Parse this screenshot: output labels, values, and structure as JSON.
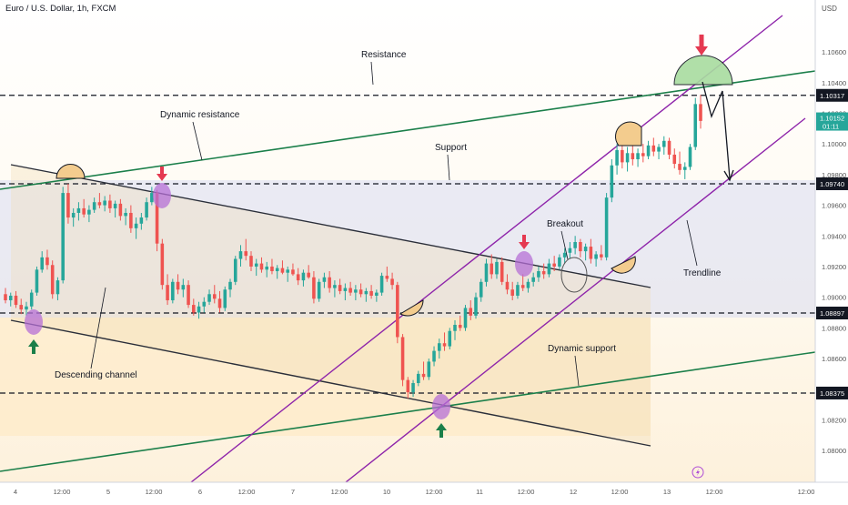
{
  "symbol_title": "Euro / U.S. Dollar, 1h, FXCM",
  "chart_data": {
    "type": "candlestick",
    "currency": "USD",
    "ylim": [
      1.079,
      1.1082
    ],
    "y_ticks": [
      "1.10600",
      "1.10400",
      "1.10200",
      "1.10000",
      "1.09800",
      "1.09600",
      "1.09400",
      "1.09200",
      "1.09000",
      "1.08800",
      "1.08600",
      "1.08400",
      "1.08200",
      "1.08000"
    ],
    "x_ticks": [
      "4",
      "12:00",
      "5",
      "12:00",
      "6",
      "12:00",
      "7",
      "12:00",
      "10",
      "12:00",
      "11",
      "12:00",
      "12",
      "12:00",
      "13",
      "12:00",
      "12:00"
    ],
    "levels": [
      {
        "price": "1.10317",
        "color": "#131722"
      },
      {
        "price": "1.09740",
        "color": "#131722"
      },
      {
        "price": "1.08897",
        "color": "#131722"
      },
      {
        "price": "1.08375",
        "color": "#131722"
      }
    ],
    "last_price": {
      "price": "1.10152",
      "countdown": "01:11",
      "color": "#26a69a"
    },
    "annotations": [
      "Resistance",
      "Dynamic resistance",
      "Support",
      "Breakout",
      "Trendline",
      "Descending channel",
      "Dynamic support"
    ],
    "colors": {
      "up": "#26a69a",
      "down": "#ef5350",
      "channel": "#8e24aa",
      "dynamic": "#1b7f4a",
      "marker_down": "#e53950",
      "marker_up": "#1b7f4a"
    },
    "candles": [
      [
        1.0902,
        1.0906,
        1.0896,
        1.0898
      ],
      [
        1.0898,
        1.0903,
        1.0894,
        1.0901
      ],
      [
        1.0901,
        1.0904,
        1.0893,
        1.0895
      ],
      [
        1.0895,
        1.0899,
        1.0889,
        1.0892
      ],
      [
        1.0892,
        1.0897,
        1.0888,
        1.0894
      ],
      [
        1.0894,
        1.0905,
        1.0892,
        1.0903
      ],
      [
        1.0903,
        1.092,
        1.0901,
        1.0918
      ],
      [
        1.0918,
        1.093,
        1.0916,
        1.0926
      ],
      [
        1.0926,
        1.0931,
        1.0918,
        1.0921
      ],
      [
        1.0921,
        1.0924,
        1.0899,
        1.0902
      ],
      [
        1.0902,
        1.0913,
        1.0898,
        1.0911
      ],
      [
        1.0911,
        1.0972,
        1.0909,
        1.0968
      ],
      [
        1.0968,
        1.0974,
        1.0948,
        1.0952
      ],
      [
        1.0952,
        1.0958,
        1.0946,
        1.0955
      ],
      [
        1.0955,
        1.0962,
        1.095,
        1.0958
      ],
      [
        1.0958,
        1.0964,
        1.0952,
        1.0954
      ],
      [
        1.0954,
        1.096,
        1.0949,
        1.0957
      ],
      [
        1.0957,
        1.0965,
        1.0955,
        1.0962
      ],
      [
        1.0962,
        1.0968,
        1.0958,
        1.096
      ],
      [
        1.096,
        1.0966,
        1.0956,
        1.0963
      ],
      [
        1.0963,
        1.0967,
        1.0955,
        1.0958
      ],
      [
        1.0958,
        1.0963,
        1.0952,
        1.0961
      ],
      [
        1.0961,
        1.0964,
        1.095,
        1.0953
      ],
      [
        1.0953,
        1.0958,
        1.0947,
        1.0955
      ],
      [
        1.0955,
        1.096,
        1.0942,
        1.0945
      ],
      [
        1.0945,
        1.0952,
        1.0938,
        1.0948
      ],
      [
        1.0948,
        1.0955,
        1.0944,
        1.0952
      ],
      [
        1.0952,
        1.0965,
        1.095,
        1.0962
      ],
      [
        1.0962,
        1.0972,
        1.096,
        1.0968
      ],
      [
        1.0968,
        1.097,
        1.093,
        1.0935
      ],
      [
        1.0935,
        1.0938,
        1.0905,
        1.0908
      ],
      [
        1.0908,
        1.0915,
        1.0895,
        1.0898
      ],
      [
        1.0898,
        1.0912,
        1.0896,
        1.091
      ],
      [
        1.091,
        1.0915,
        1.0902,
        1.0905
      ],
      [
        1.0905,
        1.0912,
        1.09,
        1.0908
      ],
      [
        1.0908,
        1.0911,
        1.0893,
        1.0895
      ],
      [
        1.0895,
        1.0899,
        1.0888,
        1.089
      ],
      [
        1.089,
        1.0897,
        1.0886,
        1.0894
      ],
      [
        1.0894,
        1.09,
        1.089,
        1.0897
      ],
      [
        1.0897,
        1.0905,
        1.0895,
        1.0902
      ],
      [
        1.0902,
        1.0908,
        1.0896,
        1.0899
      ],
      [
        1.0899,
        1.0904,
        1.089,
        1.0893
      ],
      [
        1.0893,
        1.0907,
        1.0891,
        1.0905
      ],
      [
        1.0905,
        1.0912,
        1.09,
        1.091
      ],
      [
        1.091,
        1.0927,
        1.0908,
        1.0925
      ],
      [
        1.0925,
        1.0934,
        1.092,
        1.093
      ],
      [
        1.093,
        1.0938,
        1.0924,
        1.0927
      ],
      [
        1.0927,
        1.093,
        1.0917,
        1.092
      ],
      [
        1.092,
        1.0925,
        1.0914,
        1.0922
      ],
      [
        1.0922,
        1.0926,
        1.0916,
        1.0918
      ],
      [
        1.0918,
        1.0923,
        1.0913,
        1.092
      ],
      [
        1.092,
        1.0925,
        1.0915,
        1.0917
      ],
      [
        1.0917,
        1.0921,
        1.0912,
        1.0919
      ],
      [
        1.0919,
        1.0924,
        1.0915,
        1.0916
      ],
      [
        1.0916,
        1.092,
        1.091,
        1.0918
      ],
      [
        1.0918,
        1.0922,
        1.0914,
        1.0915
      ],
      [
        1.0915,
        1.0919,
        1.0908,
        1.0911
      ],
      [
        1.0911,
        1.0918,
        1.0907,
        1.0916
      ],
      [
        1.0916,
        1.0921,
        1.0912,
        1.0913
      ],
      [
        1.0913,
        1.0917,
        1.0896,
        1.0899
      ],
      [
        1.0899,
        1.0912,
        1.0897,
        1.091
      ],
      [
        1.091,
        1.0916,
        1.0906,
        1.0913
      ],
      [
        1.0913,
        1.0917,
        1.0903,
        1.0906
      ],
      [
        1.0906,
        1.0911,
        1.09,
        1.0908
      ],
      [
        1.0908,
        1.0912,
        1.0902,
        1.0904
      ],
      [
        1.0904,
        1.0909,
        1.0898,
        1.0906
      ],
      [
        1.0906,
        1.091,
        1.0901,
        1.0903
      ],
      [
        1.0903,
        1.0908,
        1.0898,
        1.0905
      ],
      [
        1.0905,
        1.0909,
        1.09,
        1.0902
      ],
      [
        1.0902,
        1.0906,
        1.0897,
        1.0904
      ],
      [
        1.0904,
        1.0908,
        1.0899,
        1.0901
      ],
      [
        1.0901,
        1.0905,
        1.0897,
        1.0903
      ],
      [
        1.0903,
        1.0916,
        1.0901,
        1.0914
      ],
      [
        1.0914,
        1.092,
        1.091,
        1.0912
      ],
      [
        1.0912,
        1.0916,
        1.0905,
        1.0908
      ],
      [
        1.0908,
        1.091,
        1.087,
        1.0874
      ],
      [
        1.0874,
        1.0876,
        1.0842,
        1.0846
      ],
      [
        1.0846,
        1.0848,
        1.0834,
        1.0838
      ],
      [
        1.0838,
        1.0846,
        1.0835,
        1.0844
      ],
      [
        1.0844,
        1.0852,
        1.0842,
        1.085
      ],
      [
        1.085,
        1.0858,
        1.0846,
        1.0848
      ],
      [
        1.0848,
        1.086,
        1.0846,
        1.0858
      ],
      [
        1.0858,
        1.0868,
        1.0855,
        1.0865
      ],
      [
        1.0865,
        1.0873,
        1.086,
        1.087
      ],
      [
        1.087,
        1.0877,
        1.0865,
        1.0868
      ],
      [
        1.0868,
        1.088,
        1.0866,
        1.0878
      ],
      [
        1.0878,
        1.0885,
        1.0872,
        1.0882
      ],
      [
        1.0882,
        1.0888,
        1.0878,
        1.088
      ],
      [
        1.088,
        1.0895,
        1.0878,
        1.0893
      ],
      [
        1.0893,
        1.0898,
        1.0885,
        1.0888
      ],
      [
        1.0888,
        1.0903,
        1.0886,
        1.09
      ],
      [
        1.09,
        1.0912,
        1.0897,
        1.091
      ],
      [
        1.091,
        1.0925,
        1.0907,
        1.0922
      ],
      [
        1.0922,
        1.0928,
        1.0912,
        1.0915
      ],
      [
        1.0915,
        1.0925,
        1.0912,
        1.0923
      ],
      [
        1.0923,
        1.0926,
        1.0908,
        1.091
      ],
      [
        1.091,
        1.0915,
        1.0902,
        1.0905
      ],
      [
        1.0905,
        1.091,
        1.0898,
        1.0901
      ],
      [
        1.0901,
        1.091,
        1.0899,
        1.0908
      ],
      [
        1.0908,
        1.0915,
        1.0904,
        1.0906
      ],
      [
        1.0906,
        1.0912,
        1.0903,
        1.091
      ],
      [
        1.091,
        1.0916,
        1.0907,
        1.0913
      ],
      [
        1.0913,
        1.092,
        1.091,
        1.0917
      ],
      [
        1.0917,
        1.0922,
        1.0912,
        1.0915
      ],
      [
        1.0915,
        1.0925,
        1.0913,
        1.0922
      ],
      [
        1.0922,
        1.0927,
        1.0917,
        1.092
      ],
      [
        1.092,
        1.0928,
        1.0918,
        1.0926
      ],
      [
        1.0926,
        1.0932,
        1.0922,
        1.0929
      ],
      [
        1.0929,
        1.0936,
        1.0925,
        1.0932
      ],
      [
        1.0932,
        1.094,
        1.0928,
        1.0936
      ],
      [
        1.0936,
        1.0938,
        1.0926,
        1.093
      ],
      [
        1.093,
        1.0935,
        1.0924,
        1.0933
      ],
      [
        1.0933,
        1.0938,
        1.0922,
        1.0925
      ],
      [
        1.0925,
        1.093,
        1.092,
        1.0928
      ],
      [
        1.0928,
        1.0934,
        1.0924,
        1.0926
      ],
      [
        1.0926,
        1.0968,
        1.0924,
        1.0965
      ],
      [
        1.0965,
        1.099,
        1.0962,
        1.0986
      ],
      [
        1.0986,
        1.1,
        1.098,
        1.0996
      ],
      [
        1.0996,
        1.1003,
        1.0984,
        1.0988
      ],
      [
        1.0988,
        1.0998,
        1.0982,
        1.0994
      ],
      [
        1.0994,
        1.1,
        1.0986,
        1.099
      ],
      [
        1.099,
        1.0997,
        1.0985,
        1.0994
      ],
      [
        1.0994,
        1.1,
        1.0988,
        1.0992
      ],
      [
        1.0992,
        1.1002,
        1.099,
        1.0999
      ],
      [
        1.0999,
        1.1004,
        1.0992,
        1.0995
      ],
      [
        1.0995,
        1.1,
        1.099,
        1.0998
      ],
      [
        1.0998,
        1.1005,
        1.0993,
        1.1002
      ],
      [
        1.1002,
        1.1004,
        1.099,
        1.0993
      ],
      [
        1.0993,
        1.0997,
        1.0984,
        1.0987
      ],
      [
        1.0987,
        1.0995,
        1.098,
        1.0983
      ],
      [
        1.0983,
        1.0988,
        1.0977,
        1.0985
      ],
      [
        1.0985,
        1.1,
        1.0983,
        1.0998
      ],
      [
        1.0998,
        1.103,
        1.0996,
        1.1026
      ],
      [
        1.1026,
        1.1032,
        1.101,
        1.1015
      ]
    ]
  }
}
